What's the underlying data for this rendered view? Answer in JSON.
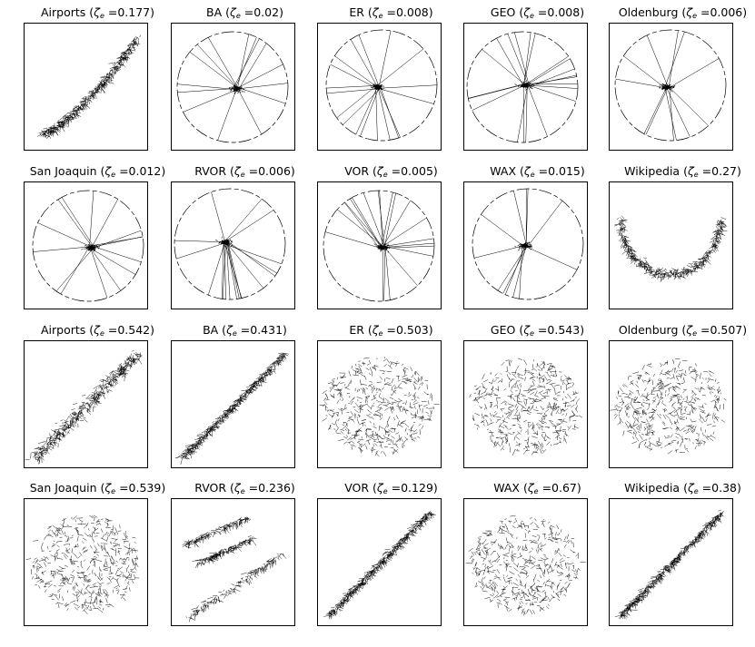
{
  "figure": {
    "zeta_symbol": "ζ",
    "zeta_subscript": "e",
    "panels": [
      {
        "name": "Airports",
        "zeta": "0.177",
        "shape": "curved-tail"
      },
      {
        "name": "BA",
        "zeta": "0.02",
        "shape": "circle-core"
      },
      {
        "name": "ER",
        "zeta": "0.008",
        "shape": "circle-core"
      },
      {
        "name": "GEO",
        "zeta": "0.008",
        "shape": "circle-core"
      },
      {
        "name": "Oldenburg",
        "zeta": "0.006",
        "shape": "circle-core"
      },
      {
        "name": "San Joaquin",
        "zeta": "0.012",
        "shape": "circle-core"
      },
      {
        "name": "RVOR",
        "zeta": "0.006",
        "shape": "circle-core"
      },
      {
        "name": "VOR",
        "zeta": "0.005",
        "shape": "circle-core"
      },
      {
        "name": "WAX",
        "zeta": "0.015",
        "shape": "circle-core"
      },
      {
        "name": "Wikipedia",
        "zeta": "0.27",
        "shape": "arc"
      },
      {
        "name": "Airports",
        "zeta": "0.542",
        "shape": "diagonal-blob"
      },
      {
        "name": "BA",
        "zeta": "0.431",
        "shape": "diagonal-band"
      },
      {
        "name": "ER",
        "zeta": "0.503",
        "shape": "blob"
      },
      {
        "name": "GEO",
        "zeta": "0.543",
        "shape": "blob"
      },
      {
        "name": "Oldenburg",
        "zeta": "0.507",
        "shape": "blob"
      },
      {
        "name": "San Joaquin",
        "zeta": "0.539",
        "shape": "blob"
      },
      {
        "name": "RVOR",
        "zeta": "0.236",
        "shape": "multi-band"
      },
      {
        "name": "VOR",
        "zeta": "0.129",
        "shape": "diagonal-band"
      },
      {
        "name": "WAX",
        "zeta": "0.67",
        "shape": "blob"
      },
      {
        "name": "Wikipedia",
        "zeta": "0.38",
        "shape": "diagonal-band"
      }
    ]
  }
}
